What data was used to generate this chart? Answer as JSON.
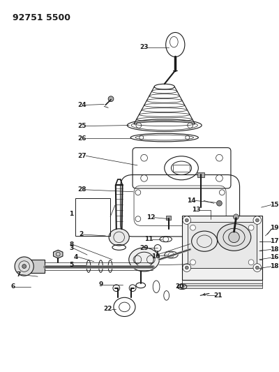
{
  "title": "92751 5500",
  "bg_color": "#ffffff",
  "lc": "#1a1a1a",
  "figsize": [
    4.0,
    5.33
  ],
  "dpi": 100,
  "title_fs": 9,
  "label_fs": 6.5
}
